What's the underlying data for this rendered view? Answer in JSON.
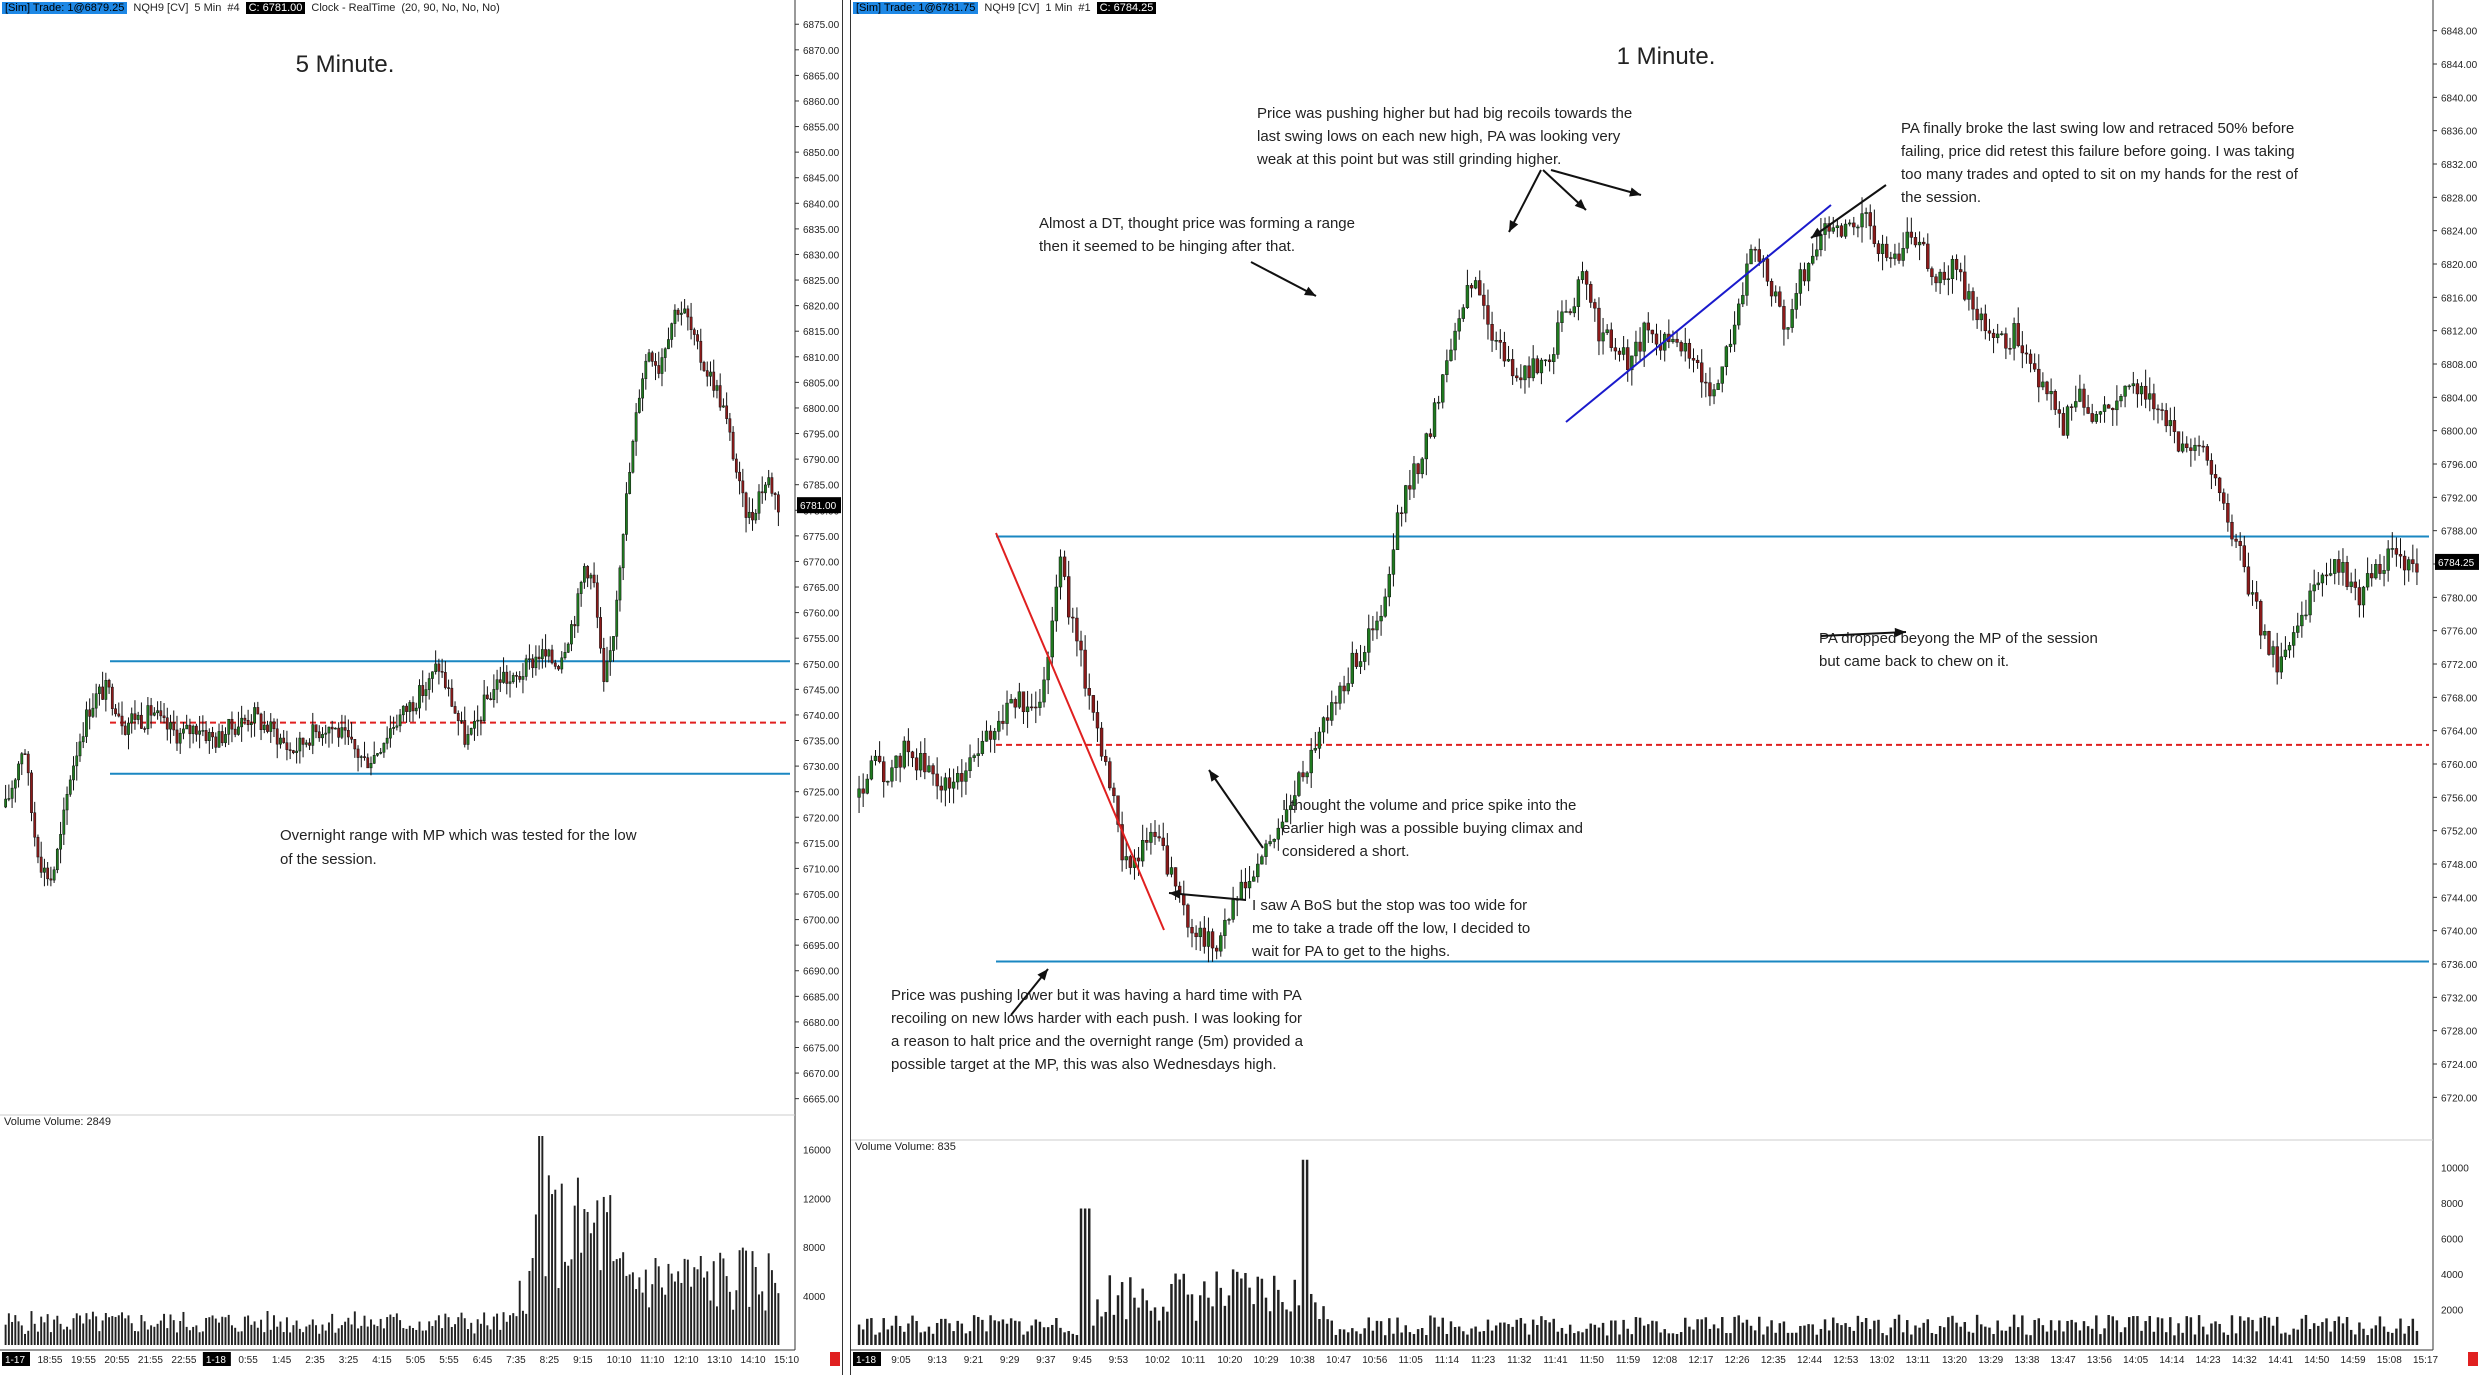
{
  "chart_data": [
    {
      "type": "candlestick",
      "name": "5 Minute.",
      "header": {
        "sim": "[Sim]  Trade: 1@6879.25",
        "symbol": "NQH9 [CV]",
        "interval": "5 Min",
        "bars": "#4",
        "close": "C: 6781.00",
        "clock": "Clock - RealTime",
        "params": "(20, 90, No, No, No)"
      },
      "title": "5 Minute.",
      "price_labels": [
        "6875.00",
        "6870.00",
        "6865.00",
        "6860.00",
        "6855.00",
        "6850.00",
        "6845.00",
        "6840.00",
        "6835.00",
        "6830.00",
        "6825.00",
        "6820.00",
        "6815.00",
        "6810.00",
        "6805.00",
        "6800.00",
        "6795.00",
        "6790.00",
        "6785.00",
        "6780.00",
        "6775.00",
        "6770.00",
        "6765.00",
        "6760.00",
        "6755.00",
        "6750.00",
        "6745.00",
        "6740.00",
        "6735.00",
        "6730.00",
        "6725.00",
        "6720.00",
        "6715.00",
        "6710.00",
        "6705.00",
        "6700.00",
        "6695.00",
        "6690.00",
        "6685.00",
        "6680.00",
        "6675.00",
        "6670.00",
        "6665.00"
      ],
      "ylim": [
        6662,
        6877
      ],
      "last_price": "6781.00",
      "time_labels": [
        "1-17",
        "18:55",
        "19:55",
        "20:55",
        "21:55",
        "22:55",
        "1-18",
        "0:55",
        "1:45",
        "2:35",
        "3:25",
        "4:15",
        "5:05",
        "5:55",
        "6:45",
        "7:35",
        "8:25",
        "9:15",
        "10:10",
        "11:10",
        "12:10",
        "13:10",
        "14:10",
        "15:10"
      ],
      "lines": [
        {
          "price": 6750.5,
          "style": "solid",
          "color": "#1a87c2"
        },
        {
          "price": 6738.5,
          "style": "dashed",
          "color": "#e02020"
        },
        {
          "price": 6728.5,
          "style": "solid",
          "color": "#1a87c2"
        }
      ],
      "annotations": [
        {
          "lines": [
            "Overnight range with MP which was tested for the low",
            "of the session."
          ]
        }
      ],
      "price_path": [
        6722,
        6728,
        6735,
        6718,
        6710,
        6708,
        6716,
        6728,
        6735,
        6741,
        6744,
        6745,
        6742,
        6738,
        6740,
        6739,
        6741,
        6738,
        6737,
        6736,
        6737,
        6738,
        6736,
        6735,
        6737,
        6738,
        6739,
        6740,
        6738,
        6737,
        6735,
        6733,
        6734,
        6736,
        6737,
        6738,
        6737,
        6735,
        6733,
        6731,
        6732,
        6735,
        6738,
        6740,
        6742,
        6744,
        6746,
        6750,
        6745,
        6740,
        6735,
        6737,
        6742,
        6745,
        6748,
        6746,
        6748,
        6750,
        6752,
        6751,
        6750,
        6755,
        6760,
        6770,
        6765,
        6745,
        6755,
        6775,
        6790,
        6805,
        6812,
        6808,
        6815,
        6820,
        6818,
        6812,
        6808,
        6805,
        6800,
        6792,
        6782,
        6778,
        6784,
        6786,
        6781
      ],
      "volume": {
        "label": "Volume  Volume: 2849",
        "ticks": [
          "16000",
          "12000",
          "8000",
          "4000"
        ],
        "max": 18000
      }
    },
    {
      "type": "candlestick",
      "name": "1 Minute.",
      "header": {
        "sim": "[Sim]  Trade: 1@6781.75",
        "symbol": "NQH9 [CV]",
        "interval": "1 Min",
        "bars": "#1",
        "close": "C: 6784.25"
      },
      "title": "1 Minute.",
      "price_labels": [
        "6848.00",
        "6844.00",
        "6840.00",
        "6836.00",
        "6832.00",
        "6828.00",
        "6824.00",
        "6820.00",
        "6816.00",
        "6812.00",
        "6808.00",
        "6804.00",
        "6800.00",
        "6796.00",
        "6792.00",
        "6788.00",
        "6784.00",
        "6780.00",
        "6776.00",
        "6772.00",
        "6768.00",
        "6764.00",
        "6760.00",
        "6756.00",
        "6752.00",
        "6748.00",
        "6744.00",
        "6740.00",
        "6736.00",
        "6732.00",
        "6728.00",
        "6724.00",
        "6720.00"
      ],
      "ylim": [
        6718,
        6850
      ],
      "last_price": "6784.25",
      "time_labels": [
        "1-18",
        "9:05",
        "9:13",
        "9:21",
        "9:29",
        "9:37",
        "9:45",
        "9:53",
        "10:02",
        "10:11",
        "10:20",
        "10:29",
        "10:38",
        "10:47",
        "10:56",
        "11:05",
        "11:14",
        "11:23",
        "11:32",
        "11:41",
        "11:50",
        "11:59",
        "12:08",
        "12:17",
        "12:26",
        "12:35",
        "12:44",
        "12:53",
        "13:02",
        "13:11",
        "13:20",
        "13:29",
        "13:38",
        "13:47",
        "13:56",
        "14:05",
        "14:14",
        "14:23",
        "14:32",
        "14:41",
        "14:50",
        "14:59",
        "15:08",
        "15:17"
      ],
      "lines": [
        {
          "price": 6787.3,
          "style": "solid",
          "color": "#1a87c2"
        },
        {
          "price": 6762.3,
          "style": "dashed",
          "color": "#e02020"
        },
        {
          "price": 6736.3,
          "style": "solid",
          "color": "#1a87c2"
        }
      ],
      "annotations": [
        {
          "lines": [
            "Price was pushing higher but had big recoils towards the",
            "last swing lows on each new high, PA was looking very",
            "weak at this point but was still grinding higher."
          ]
        },
        {
          "lines": [
            "PA finally broke the last swing low and retraced 50% before",
            "failing, price did retest this failure before going.  I was taking",
            "too many trades and opted to sit on my hands for the rest of",
            "the session."
          ]
        },
        {
          "lines": [
            "Almost a DT, thought price was forming a range",
            "then it seemed to be hinging after that."
          ]
        },
        {
          "lines": [
            "I thought the volume and price spike into the",
            "earlier high was a possible buying climax and",
            "considered a short."
          ]
        },
        {
          "lines": [
            "I saw A BoS but the stop was too wide for",
            "me to take a trade off the low, I decided to",
            "wait for PA to get to the highs."
          ]
        },
        {
          "lines": [
            "Price was pushing lower but it was having a hard time with PA",
            "recoiling on new lows harder with each push.  I was looking for",
            "a reason to halt price and the overnight range (5m) provided a",
            "possible target at the MP, this was also Wednesdays high."
          ]
        },
        {
          "lines": [
            "PA dropped beyong the MP of the session",
            "but came back to chew on it."
          ]
        }
      ],
      "price_path": [
        6756,
        6760,
        6758,
        6762,
        6760,
        6758,
        6757,
        6760,
        6762,
        6765,
        6768,
        6766,
        6770,
        6785,
        6775,
        6768,
        6760,
        6750,
        6748,
        6752,
        6748,
        6742,
        6740,
        6738,
        6742,
        6745,
        6748,
        6752,
        6755,
        6760,
        6765,
        6768,
        6772,
        6775,
        6778,
        6790,
        6795,
        6800,
        6808,
        6815,
        6818,
        6812,
        6808,
        6806,
        6808,
        6810,
        6815,
        6818,
        6812,
        6810,
        6808,
        6812,
        6810,
        6812,
        6808,
        6805,
        6808,
        6815,
        6822,
        6818,
        6812,
        6818,
        6822,
        6825,
        6824,
        6826,
        6822,
        6820,
        6824,
        6822,
        6818,
        6820,
        6815,
        6812,
        6810,
        6812,
        6808,
        6805,
        6800,
        6805,
        6802,
        6803,
        6805,
        6806,
        6803,
        6800,
        6798,
        6798,
        6795,
        6788,
        6782,
        6776,
        6772,
        6776,
        6780,
        6782,
        6784,
        6780,
        6782,
        6785,
        6784,
        6782
      ],
      "volume": {
        "label": "Volume  Volume: 835",
        "ticks": [
          "10000",
          "8000",
          "6000",
          "4000",
          "2000"
        ],
        "max": 11000
      }
    }
  ]
}
